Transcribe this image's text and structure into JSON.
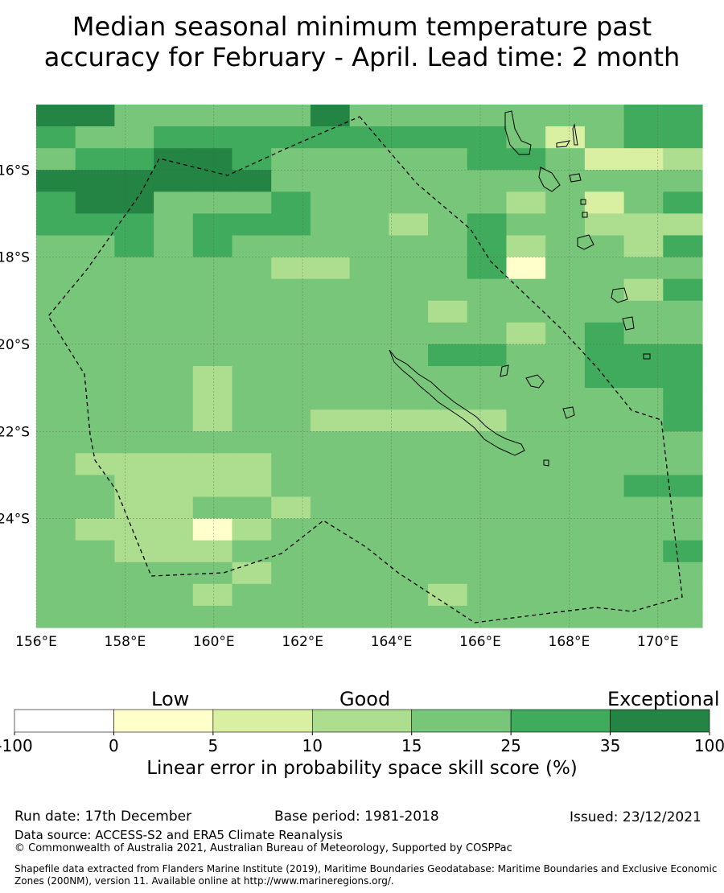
{
  "title_line1": "Median seasonal minimum temperature past",
  "title_line2": "accuracy for February - April. Lead time: 2 month",
  "map": {
    "lon_labels": [
      "156°E",
      "158°E",
      "160°E",
      "162°E",
      "164°E",
      "166°E",
      "168°E",
      "170°E"
    ],
    "lat_labels": [
      "16°S",
      "18°S",
      "20°S",
      "22°S",
      "24°S"
    ],
    "lon_range": [
      156,
      171
    ],
    "lat_range": [
      -14.5,
      -26.5
    ],
    "cell_colors": {
      "c1": "#ffffcc",
      "c2": "#d9f0a3",
      "c3": "#addd8e",
      "c4": "#78c679",
      "c5": "#41ab5d",
      "c6": "#238443"
    },
    "grid": [
      "66444446444444455",
      "54455555555542455",
      "45566544444554223",
      "66666644444444444",
      "56644454444434245",
      "55545554434544333",
      "44545444444534435",
      "44444433444514444",
      "44444444444444435",
      "44444444443444444",
      "44444444444434544",
      "44444444445544555",
      "44443444444444555",
      "44443444444444445",
      "44443443333344445",
      "44444444444444444",
      "43333344444444444",
      "44333344444444455",
      "44334434444444444",
      "43331344444444444",
      "44333444444444445",
      "44444344444444444",
      "44443444443444444",
      "44444444444444444"
    ]
  },
  "colorbar": {
    "categories": [
      "Low",
      "Good",
      "Exceptional"
    ],
    "ticks": [
      "-100",
      "0",
      "5",
      "10",
      "15",
      "25",
      "35",
      "100"
    ],
    "colors": [
      "#ffffff",
      "#ffffcc",
      "#d9f0a3",
      "#addd8e",
      "#78c679",
      "#41ab5d",
      "#238443"
    ],
    "label": "Linear error in probability space skill score (%)"
  },
  "footer": {
    "run_date": "Run date: 17th December",
    "base_period": "Base period: 1981-2018",
    "issued": "Issued: 23/12/2021",
    "data_source": "Data source: ACCESS-S2 and ERA5 Climate Reanalysis",
    "copyright": "© Commonwealth of Australia 2021, Australian Bureau of Meteorology, Supported by COSPPac",
    "shapefile": "Shapefile data extracted from Flanders Marine Institute (2019), Maritime Boundaries Geodatabase: Maritime Boundaries and Exclusive Economic Zones (200NM), version 11. Available online at http://www.marineregions.org/."
  }
}
